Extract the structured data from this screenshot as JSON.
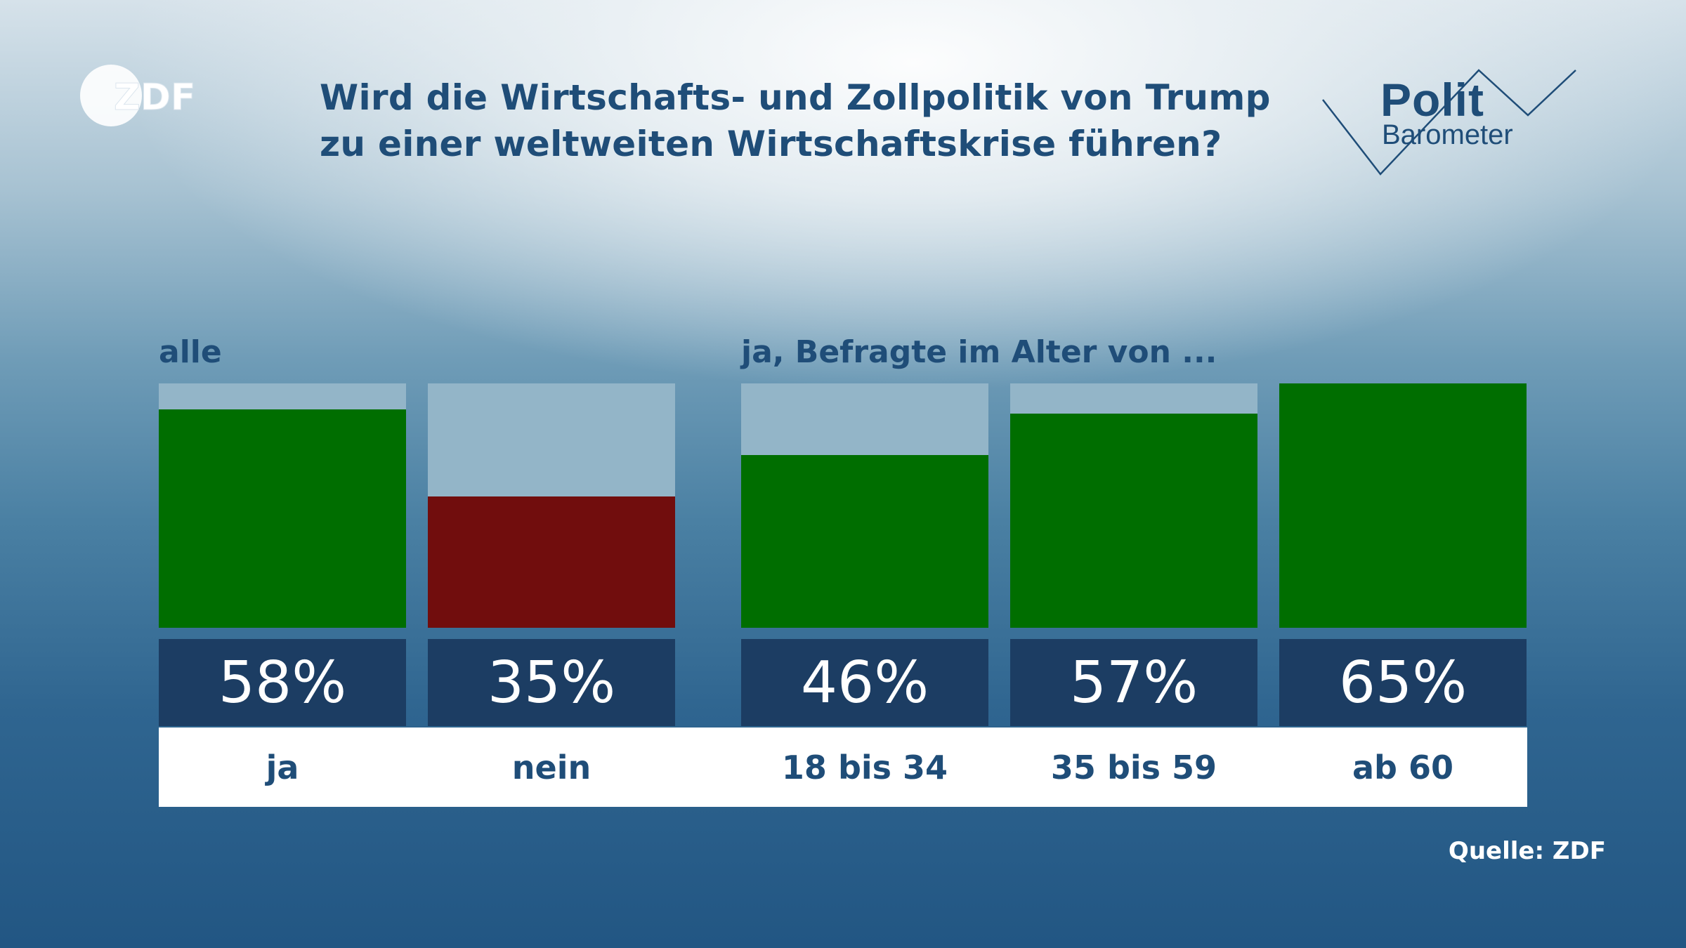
{
  "header": {
    "logo_text": "ZDF",
    "title": "Wird die Wirtschafts- und Zollpolitik von Trump zu einer weltweiten Wirtschaftskrise führen?",
    "brand_line1": "Polit",
    "brand_line2": "Barometer"
  },
  "chart_data": {
    "type": "bar",
    "title": "Wird die Wirtschafts- und Zollpolitik von Trump zu einer weltweiten Wirtschaftskrise führen?",
    "groups": [
      {
        "label": "alle",
        "categories": [
          "ja",
          "nein"
        ],
        "values": [
          58,
          35
        ],
        "colors": [
          "#006e00",
          "#710d0d"
        ]
      },
      {
        "label": "ja, Befragte im Alter von ...",
        "categories": [
          "18 bis 34",
          "35 bis 59",
          "ab 60"
        ],
        "values": [
          46,
          57,
          65
        ],
        "colors": [
          "#006e00",
          "#006e00",
          "#006e00"
        ]
      }
    ],
    "value_suffix": "%",
    "ylim": [
      0,
      65
    ],
    "background_bar_color": "#93b5c8"
  },
  "footer": {
    "source": "Quelle: ZDF"
  }
}
